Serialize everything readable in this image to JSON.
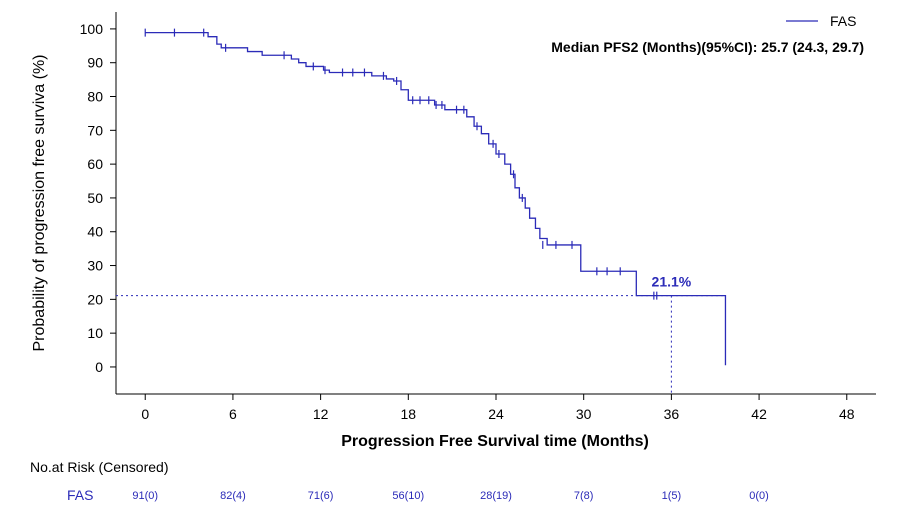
{
  "chart_data": {
    "type": "line",
    "subtype": "kaplan-meier",
    "ylabel": "Probability of progression free surviva (%)",
    "xlabel": "Progression Free Survival time (Months)",
    "x_ticks": [
      "0",
      "6",
      "12",
      "18",
      "24",
      "30",
      "36",
      "42",
      "48"
    ],
    "y_ticks": [
      "0",
      "10",
      "20",
      "30",
      "40",
      "50",
      "60",
      "70",
      "80",
      "90",
      "100"
    ],
    "xlim": [
      -2,
      50
    ],
    "ylim": [
      -8,
      105
    ],
    "grid": false,
    "legend_position": "top-right",
    "colors": {
      "series": "#2b2bb8",
      "text": "#000000"
    },
    "series": [
      {
        "name": "FAS",
        "steps": [
          [
            0,
            98.9
          ],
          [
            4.3,
            97.7
          ],
          [
            4.9,
            95.5
          ],
          [
            5.2,
            94.4
          ],
          [
            7.0,
            93.3
          ],
          [
            8.0,
            92.2
          ],
          [
            10.0,
            91.1
          ],
          [
            10.5,
            90.0
          ],
          [
            11.0,
            88.9
          ],
          [
            12.2,
            87.8
          ],
          [
            12.6,
            87.1
          ],
          [
            15.5,
            86.1
          ],
          [
            16.5,
            85.2
          ],
          [
            17.0,
            84.6
          ],
          [
            17.5,
            82.0
          ],
          [
            18.0,
            78.9
          ],
          [
            19.8,
            77.5
          ],
          [
            20.5,
            76.1
          ],
          [
            22.0,
            74.0
          ],
          [
            22.5,
            71.2
          ],
          [
            23.0,
            69.0
          ],
          [
            23.5,
            66.0
          ],
          [
            24.0,
            63.0
          ],
          [
            24.6,
            60.0
          ],
          [
            25.0,
            57.0
          ],
          [
            25.3,
            53.0
          ],
          [
            25.6,
            50.0
          ],
          [
            26.0,
            47.0
          ],
          [
            26.3,
            44.0
          ],
          [
            26.7,
            41.0
          ],
          [
            27.0,
            38.0
          ],
          [
            27.5,
            36.1
          ],
          [
            29.8,
            28.3
          ],
          [
            33.6,
            21.1
          ],
          [
            39.7,
            0.5
          ]
        ],
        "end_x": 39.7,
        "censored": [
          [
            0,
            98.9
          ],
          [
            2.0,
            98.9
          ],
          [
            4.0,
            98.9
          ],
          [
            5.5,
            94.4
          ],
          [
            9.5,
            92.2
          ],
          [
            11.5,
            88.9
          ],
          [
            12.3,
            87.8
          ],
          [
            13.5,
            87.1
          ],
          [
            14.2,
            87.1
          ],
          [
            15.0,
            87.1
          ],
          [
            16.3,
            86.1
          ],
          [
            17.2,
            84.6
          ],
          [
            18.3,
            78.9
          ],
          [
            18.8,
            78.9
          ],
          [
            19.4,
            78.9
          ],
          [
            19.9,
            77.5
          ],
          [
            20.3,
            77.5
          ],
          [
            21.3,
            76.1
          ],
          [
            21.8,
            76.1
          ],
          [
            22.7,
            71.2
          ],
          [
            23.8,
            66.0
          ],
          [
            24.2,
            63.0
          ],
          [
            25.2,
            57.0
          ],
          [
            25.8,
            50.0
          ],
          [
            27.2,
            36.1
          ],
          [
            28.1,
            36.1
          ],
          [
            29.2,
            36.1
          ],
          [
            30.9,
            28.3
          ],
          [
            31.6,
            28.3
          ],
          [
            32.5,
            28.3
          ],
          [
            34.8,
            21.1
          ],
          [
            35.0,
            21.1
          ]
        ]
      }
    ],
    "annotations": {
      "median_text": "Median PFS2 (Months)(95%CI): 25.7 (24.3, 29.7)",
      "milestone_label": "21.1%",
      "milestone_x": 36,
      "milestone_y": 21.1
    },
    "risk_table": {
      "title": "No.at Risk (Censored)",
      "group": "FAS",
      "times": [
        0,
        6,
        12,
        18,
        24,
        30,
        36,
        42
      ],
      "values": [
        "91(0)",
        "82(4)",
        "71(6)",
        "56(10)",
        "28(19)",
        "7(8)",
        "1(5)",
        "0(0)"
      ]
    }
  }
}
